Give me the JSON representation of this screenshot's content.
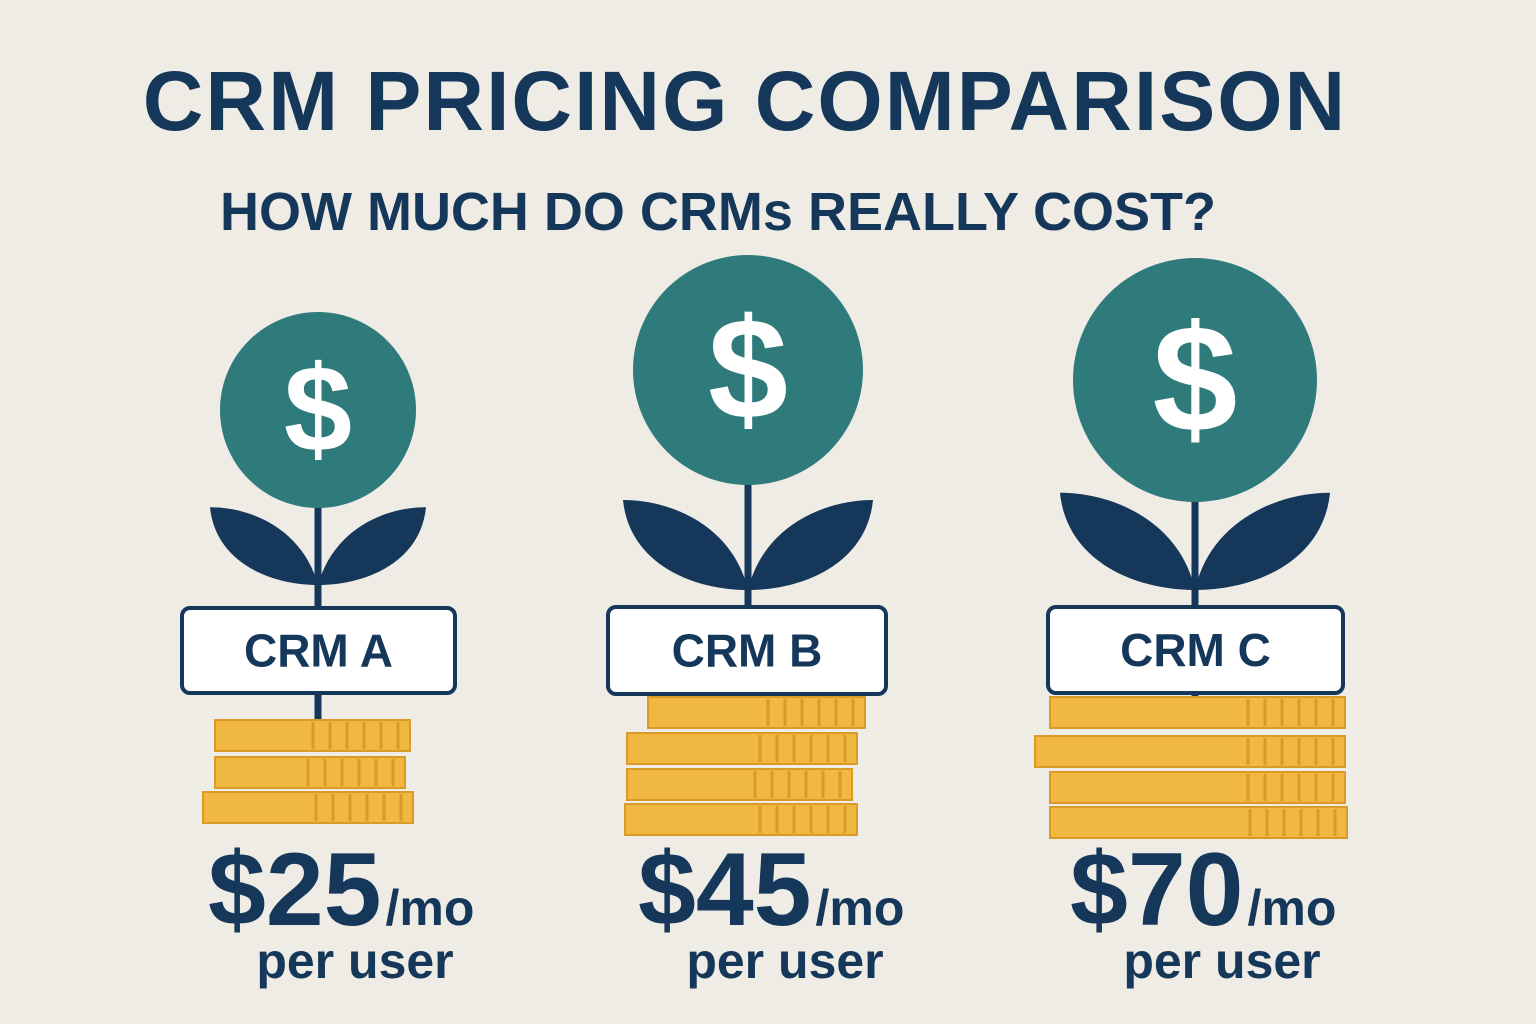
{
  "header": {
    "title": "CRM PRICING COMPARISON",
    "subtitle": "HOW MUCH DO CRMs REALLY COST?"
  },
  "items": [
    {
      "icon": "$",
      "label": "CRM A",
      "price": "$25",
      "unit": "/mo",
      "per": "per user"
    },
    {
      "icon": "$",
      "label": "CRM B",
      "price": "$45",
      "unit": "/mo",
      "per": "per user"
    },
    {
      "icon": "$",
      "label": "CRM C",
      "price": "$70",
      "unit": "/mo",
      "per": "per user"
    }
  ]
}
